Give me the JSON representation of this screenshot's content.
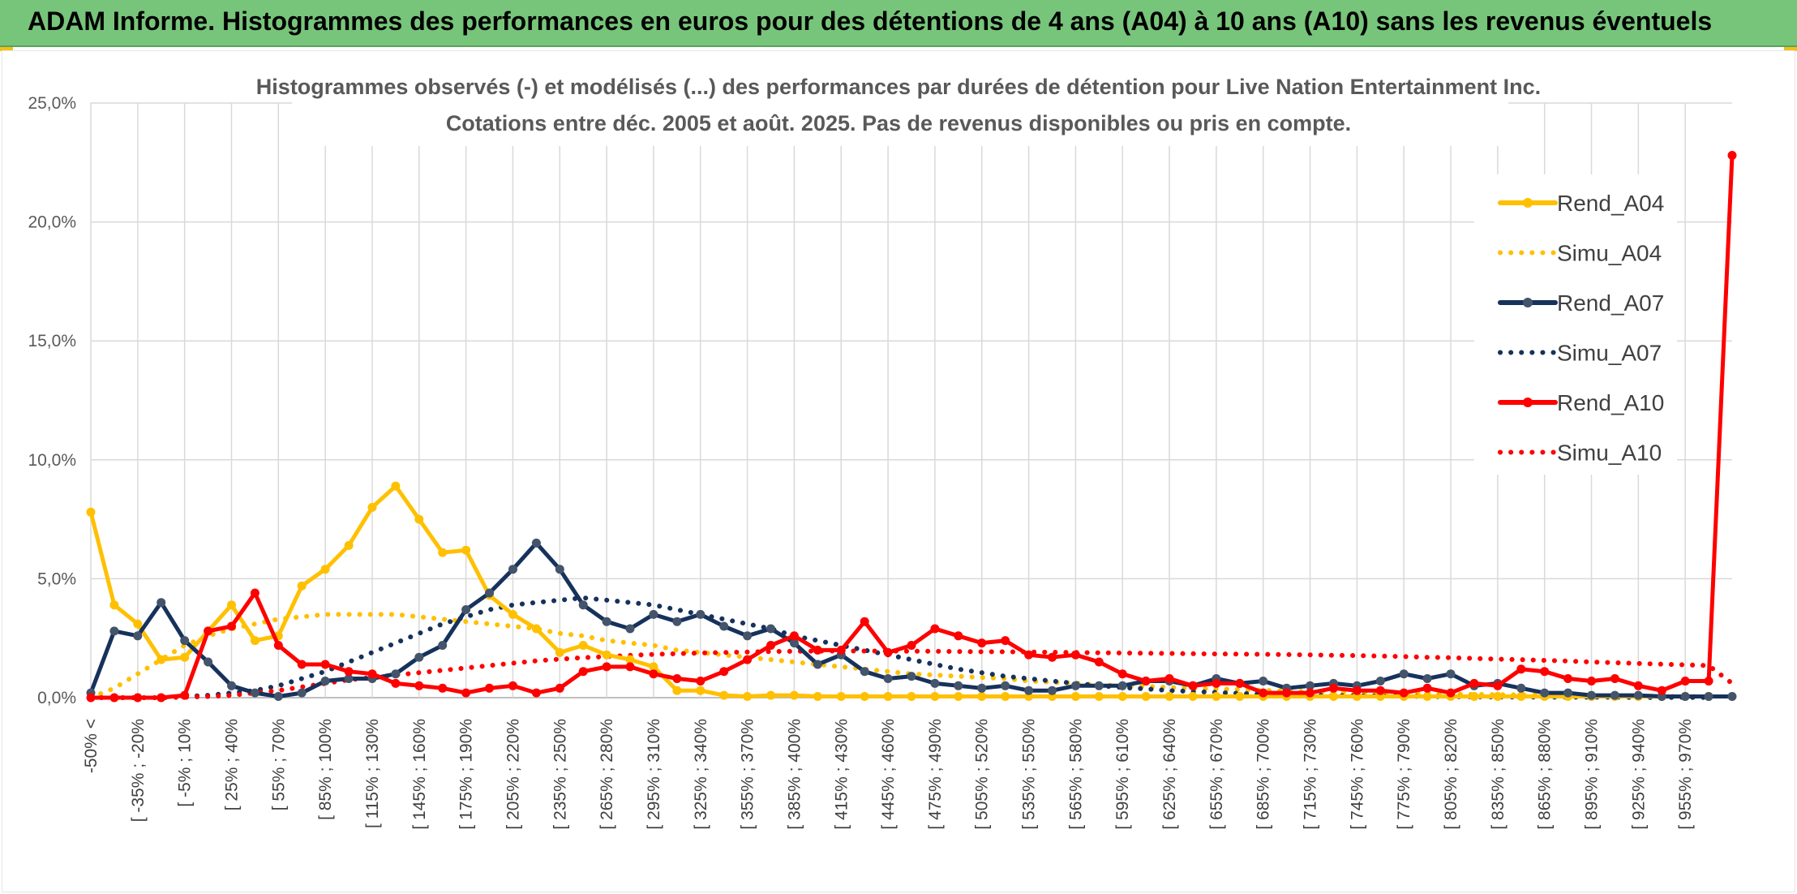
{
  "header": {
    "title": "ADAM Informe. Histogrammes des performances en euros pour des détentions de 4 ans (A04) à 10 ans (A10) sans les revenus éventuels"
  },
  "chart_data": {
    "type": "line",
    "title_line1": "Histogrammes observés (-) et modélisés (...) des performances par durées de détention pour Live Nation Entertainment Inc.",
    "title_line2": "Cotations entre déc. 2005 et août. 2025. Pas de revenus disponibles ou pris en compte.",
    "xlabel": "",
    "ylabel": "",
    "ylim": [
      0,
      25
    ],
    "y_ticks": [
      "0,0%",
      "5,0%",
      "10,0%",
      "15,0%",
      "20,0%",
      "25,0%"
    ],
    "x_tick_labels": [
      "-50% <",
      "[ -35% ; -20%",
      "[ -5% ; 10%",
      "[ 25% ; 40%",
      "[ 55% ; 70%",
      "[ 85% ; 100%",
      "[ 115% ; 130%",
      "[ 145% ; 160%",
      "[ 175% ; 190%",
      "[ 205% ; 220%",
      "[ 235% ; 250%",
      "[ 265% ; 280%",
      "[ 295% ; 310%",
      "[ 325% ; 340%",
      "[ 355% ; 370%",
      "[ 385% ; 400%",
      "[ 415% ; 430%",
      "[ 445% ; 460%",
      "[ 475% ; 490%",
      "[ 505% ; 520%",
      "[ 535% ; 550%",
      "[ 565% ; 580%",
      "[ 595% ; 610%",
      "[ 625% ; 640%",
      "[ 655% ; 670%",
      "[ 685% ; 700%",
      "[ 715% ; 730%",
      "[ 745% ; 760%",
      "[ 775% ; 790%",
      "[ 805% ; 820%",
      "[ 835% ; 850%",
      "[ 865% ; 880%",
      "[ 895% ; 910%",
      "[ 925% ; 940%",
      "[ 955% ; 970%"
    ],
    "grid": true,
    "legend_position": "right",
    "series": [
      {
        "name": "Rend_A04",
        "style": "solid",
        "color": "#ffc000",
        "values": [
          7.8,
          3.9,
          3.1,
          1.6,
          1.7,
          2.8,
          3.9,
          2.4,
          2.6,
          4.7,
          5.4,
          6.4,
          8.0,
          8.9,
          7.5,
          6.1,
          6.2,
          4.3,
          3.5,
          2.9,
          1.9,
          2.2,
          1.8,
          1.6,
          1.3,
          0.3,
          0.3,
          0.1,
          0.05,
          0.1,
          0.1,
          0.05,
          0.05,
          0.05,
          0.05,
          0.05,
          0.05,
          0.05,
          0.05,
          0.05,
          0.05,
          0.05,
          0.05,
          0.05,
          0.05,
          0.05,
          0.05,
          0.05,
          0.05,
          0.05,
          0.05,
          0.05,
          0.05,
          0.05,
          0.05,
          0.05,
          0.05,
          0.05,
          0.05,
          0.05,
          0.05,
          0.05,
          0.05,
          0.05,
          0.05,
          0.05,
          0.05,
          0.05,
          0.05,
          0.05
        ]
      },
      {
        "name": "Simu_A04",
        "style": "dotted",
        "color": "#ffc000",
        "values": [
          0.0,
          0.4,
          1.0,
          1.6,
          2.2,
          2.6,
          2.9,
          3.1,
          3.3,
          3.4,
          3.5,
          3.5,
          3.5,
          3.5,
          3.4,
          3.3,
          3.2,
          3.1,
          3.0,
          2.9,
          2.7,
          2.6,
          2.4,
          2.3,
          2.2,
          2.0,
          1.9,
          1.8,
          1.7,
          1.6,
          1.5,
          1.4,
          1.3,
          1.2,
          1.1,
          1.0,
          0.95,
          0.9,
          0.85,
          0.8,
          0.7,
          0.65,
          0.6,
          0.55,
          0.5,
          0.47,
          0.43,
          0.4,
          0.37,
          0.34,
          0.31,
          0.28,
          0.26,
          0.24,
          0.22,
          0.2,
          0.18,
          0.17,
          0.15,
          0.14,
          0.13,
          0.12,
          0.11,
          0.1,
          0.09,
          0.08,
          0.07,
          0.06,
          0.05,
          0.05
        ]
      },
      {
        "name": "Rend_A07",
        "style": "solid",
        "color": "#16325c",
        "values": [
          0.2,
          2.8,
          2.6,
          4.0,
          2.4,
          1.5,
          0.5,
          0.2,
          0.05,
          0.2,
          0.7,
          0.8,
          0.8,
          1.0,
          1.7,
          2.2,
          3.7,
          4.4,
          5.4,
          6.5,
          5.4,
          3.9,
          3.2,
          2.9,
          3.5,
          3.2,
          3.5,
          3.0,
          2.6,
          2.9,
          2.3,
          1.4,
          1.8,
          1.1,
          0.8,
          0.9,
          0.6,
          0.5,
          0.4,
          0.5,
          0.3,
          0.3,
          0.5,
          0.5,
          0.5,
          0.7,
          0.7,
          0.5,
          0.8,
          0.6,
          0.7,
          0.4,
          0.5,
          0.6,
          0.5,
          0.7,
          1.0,
          0.8,
          1.0,
          0.5,
          0.6,
          0.4,
          0.2,
          0.2,
          0.1,
          0.1,
          0.1,
          0.05,
          0.05,
          0.05,
          0.05
        ]
      },
      {
        "name": "Simu_A07",
        "style": "dotted",
        "color": "#16325c",
        "values": [
          0.0,
          0.0,
          0.0,
          0.0,
          0.05,
          0.1,
          0.2,
          0.3,
          0.5,
          0.8,
          1.1,
          1.5,
          1.9,
          2.3,
          2.7,
          3.1,
          3.4,
          3.7,
          3.9,
          4.0,
          4.1,
          4.2,
          4.1,
          4.0,
          3.9,
          3.7,
          3.5,
          3.3,
          3.1,
          2.9,
          2.6,
          2.4,
          2.2,
          2.0,
          1.8,
          1.6,
          1.4,
          1.2,
          1.05,
          0.9,
          0.8,
          0.7,
          0.6,
          0.5,
          0.43,
          0.37,
          0.3,
          0.26,
          0.22,
          0.18,
          0.15,
          0.13,
          0.11,
          0.09,
          0.08,
          0.07,
          0.06,
          0.05,
          0.04,
          0.04,
          0.03,
          0.03,
          0.02,
          0.02,
          0.02,
          0.02,
          0.01,
          0.01,
          0.01,
          0.01
        ]
      },
      {
        "name": "Rend_A10",
        "style": "solid",
        "color": "#ff0000",
        "values": [
          0.0,
          0.0,
          0.0,
          0.0,
          0.1,
          2.8,
          3.0,
          4.4,
          2.2,
          1.4,
          1.4,
          1.1,
          1.0,
          0.6,
          0.5,
          0.4,
          0.2,
          0.4,
          0.5,
          0.2,
          0.4,
          1.1,
          1.3,
          1.3,
          1.0,
          0.8,
          0.7,
          1.1,
          1.6,
          2.2,
          2.6,
          2.0,
          2.0,
          3.2,
          1.9,
          2.2,
          2.9,
          2.6,
          2.3,
          2.4,
          1.8,
          1.7,
          1.8,
          1.5,
          1.0,
          0.7,
          0.8,
          0.5,
          0.6,
          0.6,
          0.2,
          0.2,
          0.2,
          0.4,
          0.3,
          0.3,
          0.2,
          0.4,
          0.2,
          0.6,
          0.5,
          1.2,
          1.1,
          0.8,
          0.7,
          0.8,
          0.5,
          0.3,
          0.7,
          0.7,
          22.8
        ]
      },
      {
        "name": "Simu_A10",
        "style": "dotted",
        "color": "#ff0000",
        "values": [
          0.0,
          0.0,
          0.0,
          0.0,
          0.02,
          0.05,
          0.1,
          0.2,
          0.3,
          0.45,
          0.6,
          0.75,
          0.85,
          0.95,
          1.05,
          1.15,
          1.25,
          1.35,
          1.45,
          1.55,
          1.62,
          1.68,
          1.73,
          1.78,
          1.82,
          1.85,
          1.88,
          1.9,
          1.92,
          1.94,
          1.95,
          1.96,
          1.96,
          1.96,
          1.96,
          1.95,
          1.95,
          1.94,
          1.93,
          1.93,
          1.92,
          1.91,
          1.9,
          1.89,
          1.88,
          1.87,
          1.86,
          1.85,
          1.84,
          1.83,
          1.82,
          1.81,
          1.8,
          1.78,
          1.77,
          1.75,
          1.73,
          1.7,
          1.68,
          1.65,
          1.62,
          1.6,
          1.57,
          1.54,
          1.5,
          1.47,
          1.44,
          1.41,
          1.38,
          1.35,
          0.6
        ]
      }
    ]
  }
}
